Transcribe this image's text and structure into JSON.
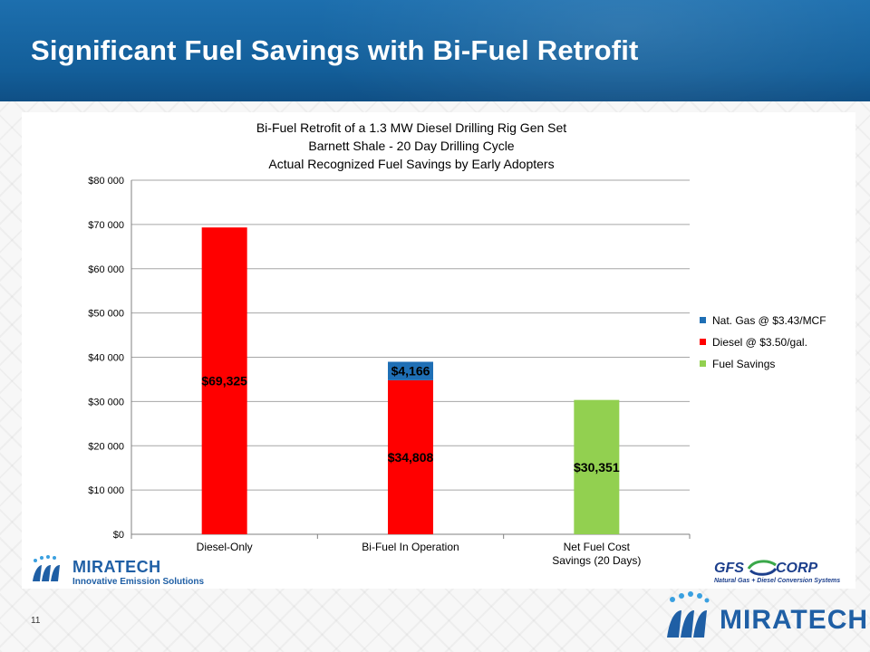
{
  "slide": {
    "title": "Significant Fuel Savings with Bi-Fuel Retrofit",
    "page_number": "11"
  },
  "colors": {
    "header_blue": "#1a67a6",
    "nat_gas": "#1f6fb5",
    "diesel": "#ff0000",
    "fuel_savings": "#92d050"
  },
  "chart_data": {
    "type": "bar",
    "title_lines": [
      "Bi-Fuel Retrofit of a 1.3 MW Diesel Drilling Rig Gen Set",
      "Barnett Shale - 20 Day Drilling Cycle",
      "Actual Recognized Fuel Savings by Early Adopters"
    ],
    "stacked": true,
    "categories": [
      "Diesel-Only",
      "Bi-Fuel In Operation",
      "Net Fuel Cost Savings (20 Days)"
    ],
    "category_label_lines": [
      [
        "Diesel-Only"
      ],
      [
        "Bi-Fuel In Operation"
      ],
      [
        "Net Fuel Cost",
        "Savings (20 Days)"
      ]
    ],
    "series": [
      {
        "name": "Diesel @ $3.50/gal.",
        "color": "#ff0000",
        "values": [
          69325,
          34808,
          0
        ]
      },
      {
        "name": "Nat. Gas @ $3.43/MCF",
        "color": "#1f6fb5",
        "values": [
          0,
          4166,
          0
        ]
      },
      {
        "name": "Fuel Savings",
        "color": "#92d050",
        "values": [
          0,
          0,
          30351
        ]
      }
    ],
    "data_labels": [
      {
        "category": 0,
        "series": 0,
        "text": "$69,325"
      },
      {
        "category": 1,
        "series": 0,
        "text": "$34,808"
      },
      {
        "category": 1,
        "series": 1,
        "text": "$4,166"
      },
      {
        "category": 2,
        "series": 2,
        "text": "$30,351"
      }
    ],
    "y_ticks": [
      "$0",
      "$10 000",
      "$20 000",
      "$30 000",
      "$40 000",
      "$50 000",
      "$60 000",
      "$70 000",
      "$80 000"
    ],
    "ylim": [
      0,
      80000
    ],
    "y_step": 10000,
    "grid": true,
    "legend": {
      "position": "right",
      "items": [
        {
          "label": "Nat. Gas @ $3.43/MCF",
          "color": "#1f6fb5"
        },
        {
          "label": "Diesel @ $3.50/gal.",
          "color": "#ff0000"
        },
        {
          "label": "Fuel Savings",
          "color": "#92d050"
        }
      ]
    }
  },
  "logos": {
    "left_wordmark": "MIRATECH",
    "left_tagline": "Innovative Emission Solutions",
    "right_gfs": "GFS",
    "right_corp": "CORP",
    "right_sub": "Natural Gas + Diesel Conversion Systems",
    "bottom_wordmark": "MIRATECH"
  }
}
